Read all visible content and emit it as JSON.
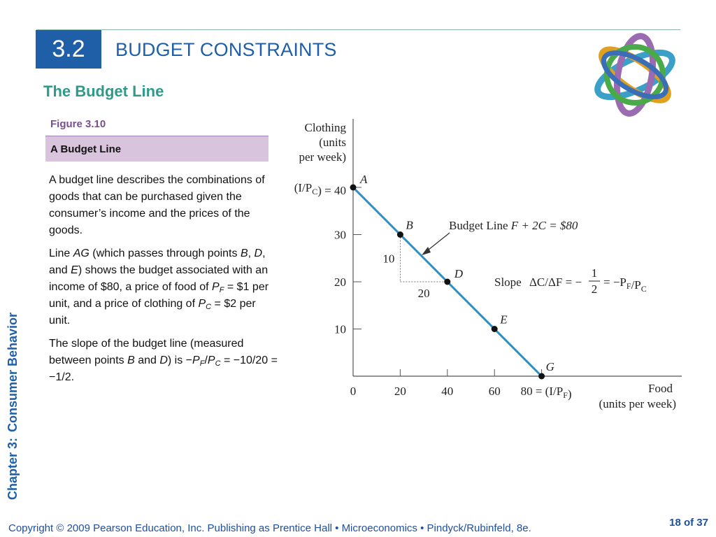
{
  "header": {
    "section_number": "3.2",
    "section_title": "BUDGET CONSTRAINTS",
    "subtitle": "The Budget Line"
  },
  "side_label": {
    "chapter": "Chapter 3:",
    "title": "Consumer Behavior"
  },
  "figure": {
    "label": "Figure 3.10",
    "caption": "A Budget Line"
  },
  "body": {
    "p1": "A budget line describes the combinations of goods that can be purchased given the consumer’s income and the prices of the goods.",
    "p2_parts": [
      "Line ",
      "AG",
      " (which passes through points ",
      "B",
      ", ",
      "D",
      ", and ",
      "E",
      ") shows the budget associated with an income of $80, a price of food of ",
      "P",
      "F",
      " = $1 per unit, and a price of clothing of ",
      "P",
      "C",
      " = $2 per unit."
    ],
    "p3_parts": [
      "The slope of the budget line (measured between points ",
      "B",
      " and ",
      "D",
      ") is −",
      "P",
      "F",
      "/",
      "P",
      "C",
      " = −10/20 = −1/2."
    ]
  },
  "chart_data": {
    "type": "line",
    "y_axis_title": [
      "Clothing",
      "(units",
      "per week)"
    ],
    "x_axis_title": [
      "Food",
      "(units per week)"
    ],
    "x_ticks": [
      "0",
      "20",
      "40",
      "60",
      "80 = (I/P_F)"
    ],
    "y_ticks": [
      "10",
      "20",
      "30",
      "(I/P_C) = 40"
    ],
    "xlim": [
      0,
      80
    ],
    "ylim": [
      0,
      40
    ],
    "points": [
      {
        "label": "A",
        "x": 0,
        "y": 40
      },
      {
        "label": "B",
        "x": 20,
        "y": 30
      },
      {
        "label": "D",
        "x": 40,
        "y": 20
      },
      {
        "label": "E",
        "x": 60,
        "y": 10
      },
      {
        "label": "G",
        "x": 80,
        "y": 0
      }
    ],
    "line_color": "#2f8fc6",
    "budget_line_label": "Budget Line",
    "budget_line_equation": "F + 2C = $80",
    "slope_label": "Slope",
    "slope_expr_left": "ΔC/ΔF = −",
    "slope_fraction": [
      "1",
      "2"
    ],
    "slope_expr_right": "= −P_F/P_C",
    "rise_label": "10",
    "run_label": "20"
  },
  "footer": {
    "text": "Copyright © 2009 Pearson Education, Inc. Publishing as Prentice Hall  •  Microeconomics  •  Pindyck/Rubinfeld, 8e.",
    "page": "18 of 37"
  }
}
